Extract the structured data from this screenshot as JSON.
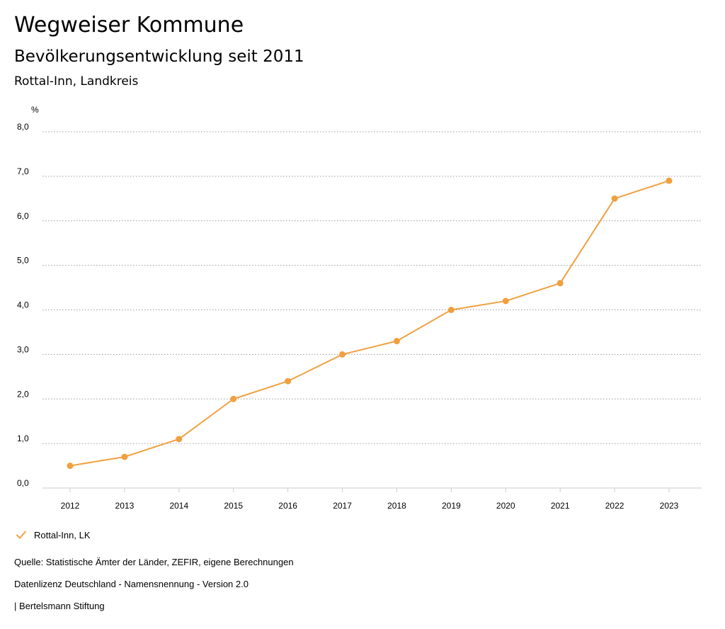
{
  "header": {
    "title": "Wegweiser Kommune",
    "subtitle": "Bevölkerungsentwicklung seit 2011",
    "region": "Rottal-Inn, Landkreis"
  },
  "colors": {
    "series": "#f0a040",
    "grid": "#9a9a9a",
    "axis": "#cccccc"
  },
  "chart_data": {
    "type": "line",
    "ylabel": "%",
    "x": [
      "2012",
      "2013",
      "2014",
      "2015",
      "2016",
      "2017",
      "2018",
      "2019",
      "2020",
      "2021",
      "2022",
      "2023"
    ],
    "ylim": [
      0,
      8
    ],
    "yticks": [
      "0,0",
      "1,0",
      "2,0",
      "3,0",
      "4,0",
      "5,0",
      "6,0",
      "7,0",
      "8,0"
    ],
    "series": [
      {
        "name": "Rottal-Inn, LK",
        "values": [
          0.5,
          0.7,
          1.1,
          2.0,
          2.4,
          3.0,
          3.3,
          4.0,
          4.2,
          4.6,
          6.5,
          6.9
        ]
      }
    ],
    "grid": true,
    "legend": "bottom-left"
  },
  "legend": {
    "icon": "check-icon",
    "label": "Rottal-Inn, LK"
  },
  "footer": {
    "source": "Quelle: Statistische Ämter der Länder, ZEFIR, eigene Berechnungen",
    "license": "Datenlizenz Deutschland - Namensnennung - Version 2.0",
    "publisher": "| Bertelsmann Stiftung"
  }
}
